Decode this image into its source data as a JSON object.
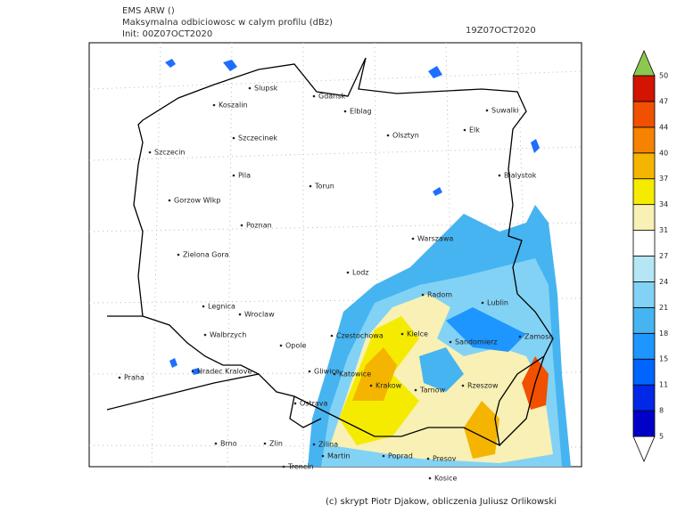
{
  "header": {
    "model": "EMS ARW ()",
    "title": "Maksymalna odbiciowosc w calym profilu (dBz)",
    "init": "Init: 00Z07OCT2020",
    "valid": "19Z07OCT2020"
  },
  "cities": [
    "Slupsk",
    "Gdansk",
    "Koszalin",
    "Elblag",
    "Suwalki",
    "Elk",
    "Szczecinek",
    "Olsztyn",
    "Szczecin",
    "Bialystok",
    "Pila",
    "Torun",
    "Gorzow Wlkp",
    "Poznan",
    "Warszawa",
    "Zielona Gora",
    "Lodz",
    "Radom",
    "Lublin",
    "Legnica",
    "Wroclaw",
    "Czestochowa",
    "Kielce",
    "Sandomierz",
    "Zamosc",
    "Walbrzych",
    "Opole",
    "Hradec Kralove",
    "Gliwice",
    "Katowice",
    "Krakow",
    "Tarnow",
    "Rzeszow",
    "Praha",
    "Ostrava",
    "Brno",
    "Zlin",
    "Zilina",
    "Martin",
    "Poprad",
    "Presov",
    "Trencin",
    "Kosice"
  ],
  "colorbar": {
    "levels": [
      5,
      8,
      11,
      15,
      18,
      21,
      24,
      27,
      31,
      34,
      37,
      40,
      44,
      47,
      50
    ],
    "colors": [
      "#0000c8",
      "#0028e6",
      "#0064ff",
      "#1e96ff",
      "#46b4f0",
      "#82d2f5",
      "#b4e6f5",
      "#ffffff",
      "#f8f0b4",
      "#f5eb00",
      "#f5b400",
      "#f58200",
      "#f05000",
      "#d21400"
    ],
    "over_color": "#8cc850",
    "under_color": "#ffffff"
  },
  "footer": "(c) skrypt Piotr Djakow, obliczenia Juliusz Orlikowski"
}
